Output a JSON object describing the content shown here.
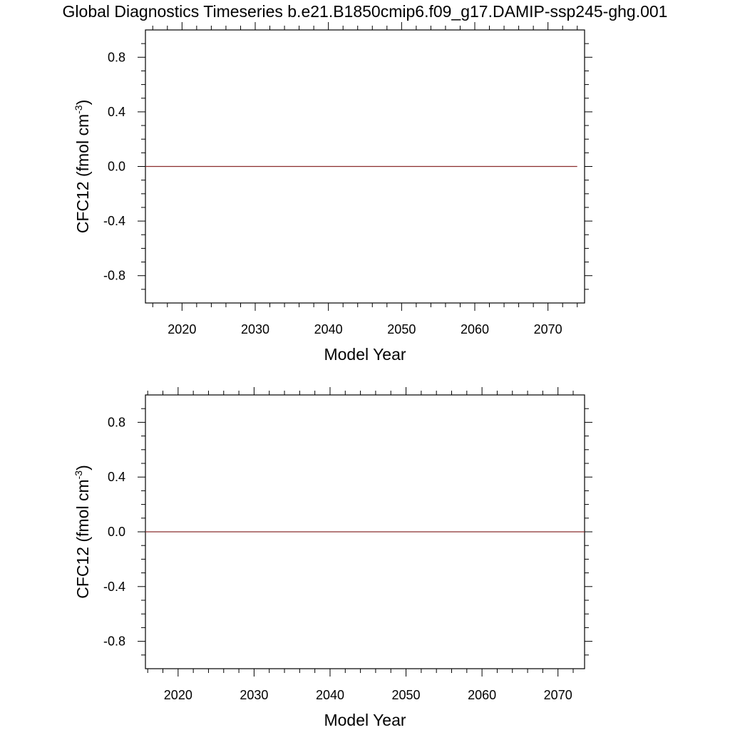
{
  "title": "Global Diagnostics Timeseries b.e21.B1850cmip6.f09_g17.DAMIP-ssp245-ghg.001",
  "chart_data": [
    {
      "type": "line",
      "xlabel": "Model Year",
      "ylabel": {
        "main": "CFC12 (fmol cm",
        "sup": "-3",
        "close": ")"
      },
      "xlim": [
        2015,
        2075
      ],
      "ylim": [
        -1.0,
        1.0
      ],
      "xticks": [
        2020,
        2030,
        2040,
        2050,
        2060,
        2070
      ],
      "xtick_labels": [
        "2020",
        "2030",
        "2040",
        "2050",
        "2060",
        "2070"
      ],
      "yticks": [
        0.8,
        0.4,
        0.0,
        -0.4,
        -0.8
      ],
      "ytick_labels": [
        "0.8",
        "0.4",
        "0.0",
        "-0.4",
        "-0.8"
      ],
      "grid": false,
      "series": [
        {
          "color": "#8B2E2E",
          "x": [
            2015,
            2074
          ],
          "y": [
            0.0,
            0.0
          ]
        }
      ]
    },
    {
      "type": "line",
      "xlabel": "Model Year",
      "ylabel": {
        "main": "CFC12 (fmol cm",
        "sup": "-3",
        "close": ")"
      },
      "xlim": [
        2015.7,
        2073.5
      ],
      "ylim": [
        -1.0,
        1.0
      ],
      "xticks": [
        2020,
        2030,
        2040,
        2050,
        2060,
        2070
      ],
      "xtick_labels": [
        "2020",
        "2030",
        "2040",
        "2050",
        "2060",
        "2070"
      ],
      "yticks": [
        0.8,
        0.4,
        0.0,
        -0.4,
        -0.8
      ],
      "ytick_labels": [
        "0.8",
        "0.4",
        "0.0",
        "-0.4",
        "-0.8"
      ],
      "grid": false,
      "series": [
        {
          "color": "#8B2E2E",
          "x": [
            2015.7,
            2073.5
          ],
          "y": [
            0.0,
            0.0
          ]
        }
      ]
    }
  ]
}
